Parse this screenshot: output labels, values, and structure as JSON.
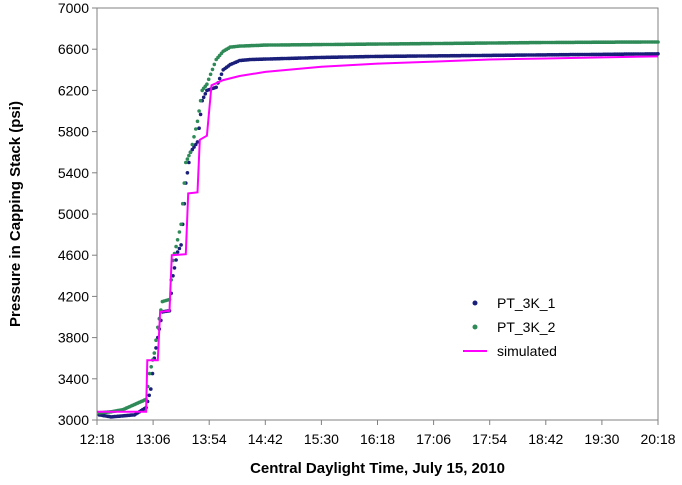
{
  "chart_data": {
    "type": "scatter",
    "title": "",
    "xlabel": "Central Daylight Time, July 15, 2010",
    "ylabel": "Pressure in Capping Stack (psi)",
    "xlim": [
      "12:18",
      "20:18"
    ],
    "ylim": [
      3000,
      7000
    ],
    "x_ticks": [
      "12:18",
      "13:06",
      "13:54",
      "14:42",
      "15:30",
      "16:18",
      "17:06",
      "17:54",
      "18:42",
      "19:30",
      "20:18"
    ],
    "y_ticks": [
      3000,
      3400,
      3800,
      4200,
      4600,
      5000,
      5400,
      5800,
      6200,
      6600,
      7000
    ],
    "grid": false,
    "legend_position": "right",
    "series": [
      {
        "name": "PT_3K_1",
        "style": "markers",
        "color": "#1a1f7a",
        "points": [
          [
            "12:20",
            3050
          ],
          [
            "12:30",
            3030
          ],
          [
            "12:40",
            3040
          ],
          [
            "12:50",
            3050
          ],
          [
            "13:00",
            3120
          ],
          [
            "13:04",
            3300
          ],
          [
            "13:07",
            3600
          ],
          [
            "13:10",
            3800
          ],
          [
            "13:14",
            4050
          ],
          [
            "13:20",
            4060
          ],
          [
            "13:23",
            4400
          ],
          [
            "13:27",
            4630
          ],
          [
            "13:30",
            4700
          ],
          [
            "13:34",
            5300
          ],
          [
            "13:38",
            5600
          ],
          [
            "13:44",
            5700
          ],
          [
            "13:48",
            6100
          ],
          [
            "13:52",
            6200
          ],
          [
            "14:00",
            6230
          ],
          [
            "14:06",
            6400
          ],
          [
            "14:12",
            6450
          ],
          [
            "14:20",
            6490
          ],
          [
            "14:30",
            6500
          ],
          [
            "15:00",
            6510
          ],
          [
            "15:30",
            6520
          ],
          [
            "16:18",
            6530
          ],
          [
            "17:06",
            6535
          ],
          [
            "17:54",
            6540
          ],
          [
            "18:42",
            6545
          ],
          [
            "19:30",
            6550
          ],
          [
            "20:18",
            6555
          ]
        ]
      },
      {
        "name": "PT_3K_2",
        "style": "markers",
        "color": "#2e8b57",
        "points": [
          [
            "12:20",
            3070
          ],
          [
            "12:30",
            3080
          ],
          [
            "12:40",
            3100
          ],
          [
            "12:50",
            3150
          ],
          [
            "13:00",
            3200
          ],
          [
            "13:03",
            3450
          ],
          [
            "13:07",
            3650
          ],
          [
            "13:10",
            3900
          ],
          [
            "13:14",
            4150
          ],
          [
            "13:20",
            4170
          ],
          [
            "13:23",
            4550
          ],
          [
            "13:27",
            4750
          ],
          [
            "13:30",
            4900
          ],
          [
            "13:34",
            5500
          ],
          [
            "13:38",
            5600
          ],
          [
            "13:44",
            5900
          ],
          [
            "13:48",
            6200
          ],
          [
            "13:52",
            6260
          ],
          [
            "14:00",
            6500
          ],
          [
            "14:06",
            6580
          ],
          [
            "14:12",
            6620
          ],
          [
            "14:20",
            6630
          ],
          [
            "14:42",
            6640
          ],
          [
            "15:30",
            6645
          ],
          [
            "16:18",
            6650
          ],
          [
            "17:06",
            6655
          ],
          [
            "17:54",
            6660
          ],
          [
            "18:42",
            6665
          ],
          [
            "19:30",
            6668
          ],
          [
            "20:18",
            6670
          ]
        ]
      },
      {
        "name": "simulated",
        "style": "line",
        "color": "#ff00ff",
        "points": [
          [
            "12:18",
            3080
          ],
          [
            "13:00",
            3080
          ],
          [
            "13:01",
            3580
          ],
          [
            "13:10",
            3580
          ],
          [
            "13:12",
            4050
          ],
          [
            "13:20",
            4060
          ],
          [
            "13:22",
            4600
          ],
          [
            "13:34",
            4610
          ],
          [
            "13:36",
            5200
          ],
          [
            "13:44",
            5210
          ],
          [
            "13:46",
            5720
          ],
          [
            "13:52",
            5760
          ],
          [
            "13:56",
            6250
          ],
          [
            "14:06",
            6300
          ],
          [
            "14:20",
            6340
          ],
          [
            "14:42",
            6380
          ],
          [
            "15:30",
            6430
          ],
          [
            "16:18",
            6460
          ],
          [
            "17:06",
            6480
          ],
          [
            "17:54",
            6500
          ],
          [
            "18:42",
            6510
          ],
          [
            "19:30",
            6520
          ],
          [
            "20:18",
            6530
          ]
        ]
      }
    ]
  }
}
